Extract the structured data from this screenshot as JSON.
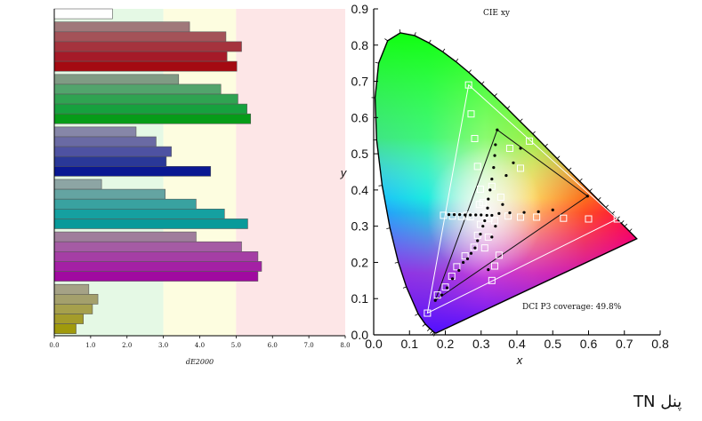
{
  "caption": "پنل TN",
  "chart_data": [
    {
      "type": "bar",
      "orientation": "horizontal",
      "xlabel": "dE2000",
      "xlim": [
        0,
        8
      ],
      "xticks": [
        "0.0",
        "1.0",
        "2.0",
        "3.0",
        "4.0",
        "5.0",
        "6.0",
        "7.0",
        "8.0"
      ],
      "zones": [
        {
          "from": 0,
          "to": 3,
          "color": "#e5f9e5"
        },
        {
          "from": 3,
          "to": 5,
          "color": "#fdfde0"
        },
        {
          "from": 5,
          "to": 8,
          "color": "#fde6e7"
        }
      ],
      "bars": [
        {
          "value": 1.6,
          "color": "#ffffff"
        },
        {
          "value": 3.72,
          "color": "#a0787a"
        },
        {
          "value": 4.72,
          "color": "#a45258"
        },
        {
          "value": 5.15,
          "color": "#a5333d"
        },
        {
          "value": 4.75,
          "color": "#a51a28"
        },
        {
          "value": 5.02,
          "color": "#a40a12"
        },
        {
          "value": 3.42,
          "color": "#809b84"
        },
        {
          "value": 4.58,
          "color": "#52a46c"
        },
        {
          "value": 5.05,
          "color": "#2fa351"
        },
        {
          "value": 5.3,
          "color": "#16a13e"
        },
        {
          "value": 5.4,
          "color": "#069c18"
        },
        {
          "value": 2.25,
          "color": "#8686a8"
        },
        {
          "value": 2.8,
          "color": "#6a6aa4"
        },
        {
          "value": 3.22,
          "color": "#4e52a2"
        },
        {
          "value": 3.08,
          "color": "#2a3898"
        },
        {
          "value": 4.3,
          "color": "#0a1892"
        },
        {
          "value": 1.3,
          "color": "#8da5a4"
        },
        {
          "value": 3.05,
          "color": "#64a4a2"
        },
        {
          "value": 3.9,
          "color": "#39a2a0"
        },
        {
          "value": 4.68,
          "color": "#15a0a0"
        },
        {
          "value": 5.32,
          "color": "#089a9a"
        },
        {
          "value": 3.9,
          "color": "#a07d9c"
        },
        {
          "value": 5.15,
          "color": "#a55ba4"
        },
        {
          "value": 5.6,
          "color": "#a53ea5"
        },
        {
          "value": 5.7,
          "color": "#a420a5"
        },
        {
          "value": 5.6,
          "color": "#a00aa0"
        },
        {
          "value": 0.95,
          "color": "#a5a286"
        },
        {
          "value": 1.2,
          "color": "#a4a06c"
        },
        {
          "value": 1.05,
          "color": "#a6a04c"
        },
        {
          "value": 0.8,
          "color": "#a49c2a"
        },
        {
          "value": 0.6,
          "color": "#a09a0c"
        }
      ]
    },
    {
      "type": "scatter",
      "title": "CIE xy",
      "xlabel": "x",
      "ylabel": "y",
      "xlim": [
        0,
        0.8
      ],
      "ylim": [
        0,
        0.9
      ],
      "xticks": [
        "0.0",
        "0.1",
        "0.2",
        "0.3",
        "0.4",
        "0.5",
        "0.6",
        "0.7",
        "0.8"
      ],
      "yticks": [
        "0.0",
        "0.1",
        "0.2",
        "0.3",
        "0.4",
        "0.5",
        "0.6",
        "0.7",
        "0.8",
        "0.9"
      ],
      "annotation": "DCI P3 coverage: 49.8%",
      "spectral_locus": [
        [
          0.1741,
          0.005
        ],
        [
          0.1714,
          0.0051
        ],
        [
          0.1689,
          0.0069
        ],
        [
          0.1644,
          0.0109
        ],
        [
          0.1566,
          0.0177
        ],
        [
          0.144,
          0.0297
        ],
        [
          0.1241,
          0.0578
        ],
        [
          0.0913,
          0.1327
        ],
        [
          0.0687,
          0.2007
        ],
        [
          0.0454,
          0.295
        ],
        [
          0.0235,
          0.4127
        ],
        [
          0.0082,
          0.5384
        ],
        [
          0.0039,
          0.6548
        ],
        [
          0.0139,
          0.7502
        ],
        [
          0.0389,
          0.812
        ],
        [
          0.0743,
          0.8338
        ],
        [
          0.1142,
          0.8262
        ],
        [
          0.1547,
          0.8059
        ],
        [
          0.1929,
          0.7816
        ],
        [
          0.2296,
          0.7543
        ],
        [
          0.2658,
          0.7243
        ],
        [
          0.3016,
          0.6923
        ],
        [
          0.3373,
          0.6589
        ],
        [
          0.3731,
          0.6245
        ],
        [
          0.4087,
          0.5896
        ],
        [
          0.4441,
          0.5547
        ],
        [
          0.4788,
          0.5202
        ],
        [
          0.5125,
          0.4866
        ],
        [
          0.5448,
          0.4544
        ],
        [
          0.5752,
          0.4242
        ],
        [
          0.6029,
          0.3965
        ],
        [
          0.627,
          0.3725
        ],
        [
          0.6482,
          0.3514
        ],
        [
          0.6658,
          0.334
        ],
        [
          0.6801,
          0.3197
        ],
        [
          0.6915,
          0.3083
        ],
        [
          0.7006,
          0.2993
        ],
        [
          0.714,
          0.2859
        ],
        [
          0.7347,
          0.2653
        ]
      ],
      "reference_triangle": [
        [
          0.68,
          0.32
        ],
        [
          0.265,
          0.69
        ],
        [
          0.15,
          0.06
        ]
      ],
      "measured_triangle": [
        [
          0.597,
          0.383
        ],
        [
          0.345,
          0.566
        ],
        [
          0.172,
          0.095
        ]
      ],
      "reference_targets": [
        [
          0.265,
          0.69
        ],
        [
          0.272,
          0.61
        ],
        [
          0.282,
          0.542
        ],
        [
          0.29,
          0.465
        ],
        [
          0.298,
          0.402
        ],
        [
          0.305,
          0.365
        ],
        [
          0.312,
          0.33
        ],
        [
          0.298,
          0.305
        ],
        [
          0.29,
          0.275
        ],
        [
          0.28,
          0.242
        ],
        [
          0.255,
          0.218
        ],
        [
          0.232,
          0.188
        ],
        [
          0.218,
          0.162
        ],
        [
          0.2,
          0.132
        ],
        [
          0.178,
          0.11
        ],
        [
          0.15,
          0.06
        ],
        [
          0.195,
          0.33
        ],
        [
          0.22,
          0.328
        ],
        [
          0.245,
          0.327
        ],
        [
          0.27,
          0.326
        ],
        [
          0.322,
          0.322
        ],
        [
          0.338,
          0.315
        ],
        [
          0.35,
          0.22
        ],
        [
          0.338,
          0.19
        ],
        [
          0.33,
          0.15
        ],
        [
          0.32,
          0.27
        ],
        [
          0.31,
          0.24
        ],
        [
          0.375,
          0.328
        ],
        [
          0.41,
          0.325
        ],
        [
          0.455,
          0.325
        ],
        [
          0.53,
          0.322
        ],
        [
          0.6,
          0.32
        ],
        [
          0.68,
          0.32
        ],
        [
          0.38,
          0.515
        ],
        [
          0.41,
          0.46
        ],
        [
          0.435,
          0.535
        ],
        [
          0.33,
          0.41
        ],
        [
          0.295,
          0.36
        ],
        [
          0.26,
          0.33
        ],
        [
          0.355,
          0.38
        ]
      ],
      "measured_points": [
        [
          0.345,
          0.566
        ],
        [
          0.34,
          0.525
        ],
        [
          0.338,
          0.495
        ],
        [
          0.335,
          0.462
        ],
        [
          0.33,
          0.43
        ],
        [
          0.325,
          0.4
        ],
        [
          0.32,
          0.375
        ],
        [
          0.318,
          0.35
        ],
        [
          0.316,
          0.33
        ],
        [
          0.31,
          0.315
        ],
        [
          0.305,
          0.3
        ],
        [
          0.298,
          0.278
        ],
        [
          0.29,
          0.26
        ],
        [
          0.283,
          0.24
        ],
        [
          0.272,
          0.225
        ],
        [
          0.262,
          0.21
        ],
        [
          0.25,
          0.2
        ],
        [
          0.238,
          0.178
        ],
        [
          0.22,
          0.155
        ],
        [
          0.205,
          0.13
        ],
        [
          0.19,
          0.11
        ],
        [
          0.172,
          0.095
        ],
        [
          0.21,
          0.332
        ],
        [
          0.225,
          0.332
        ],
        [
          0.24,
          0.332
        ],
        [
          0.255,
          0.331
        ],
        [
          0.27,
          0.331
        ],
        [
          0.285,
          0.331
        ],
        [
          0.3,
          0.331
        ],
        [
          0.33,
          0.33
        ],
        [
          0.35,
          0.335
        ],
        [
          0.38,
          0.337
        ],
        [
          0.42,
          0.338
        ],
        [
          0.46,
          0.34
        ],
        [
          0.5,
          0.345
        ],
        [
          0.597,
          0.383
        ],
        [
          0.41,
          0.515
        ],
        [
          0.39,
          0.475
        ],
        [
          0.37,
          0.44
        ],
        [
          0.36,
          0.36
        ],
        [
          0.34,
          0.3
        ],
        [
          0.33,
          0.27
        ],
        [
          0.32,
          0.18
        ]
      ]
    }
  ]
}
